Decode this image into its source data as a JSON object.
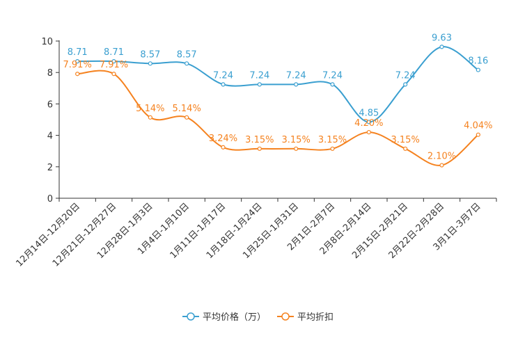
{
  "chart_data": {
    "type": "line",
    "title": "",
    "xlabel": "",
    "ylabel": "",
    "ylim": [
      0,
      10
    ],
    "yticks": [
      0,
      2,
      4,
      6,
      8,
      10
    ],
    "grid": false,
    "smooth": true,
    "legend_position": "bottom-center",
    "categories": [
      "12月14日-12月20日",
      "12月21日-12月27日",
      "12月28日-1月3日",
      "1月4日-1月10日",
      "1月11日-1月17日",
      "1月18日-1月24日",
      "1月25日-1月31日",
      "2月1日-2月7日",
      "2月8日-2月14日",
      "2月15日-2月21日",
      "2月22日-2月28日",
      "3月1日-3月7日"
    ],
    "series": [
      {
        "name": "平均价格（万）",
        "color": "#3a9fd0",
        "values": [
          8.71,
          8.71,
          8.57,
          8.57,
          7.24,
          7.24,
          7.24,
          7.24,
          4.85,
          7.24,
          9.63,
          8.16
        ],
        "labels": [
          "8.71",
          "8.71",
          "8.57",
          "8.57",
          "7.24",
          "7.24",
          "7.24",
          "7.24",
          "4.85",
          "7.24",
          "9.63",
          "8.16"
        ]
      },
      {
        "name": "平均折扣",
        "color": "#f5821f",
        "values": [
          7.91,
          7.91,
          5.14,
          5.14,
          3.24,
          3.15,
          3.15,
          3.15,
          4.2,
          3.15,
          2.1,
          4.04
        ],
        "labels": [
          "7.91%",
          "7.91%",
          "5.14%",
          "5.14%",
          "3.24%",
          "3.15%",
          "3.15%",
          "3.15%",
          "4.20%",
          "3.15%",
          "2.10%",
          "4.04%"
        ]
      }
    ]
  }
}
